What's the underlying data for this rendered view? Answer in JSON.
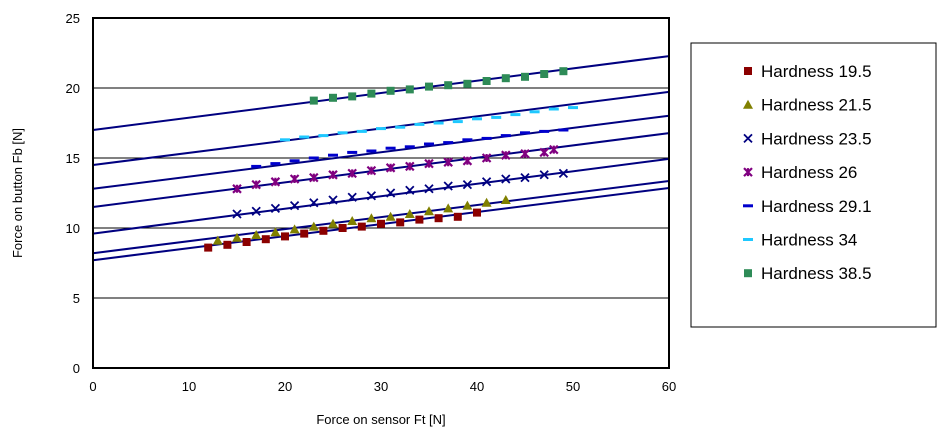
{
  "chart_data": {
    "type": "scatter",
    "xlabel": "Force on sensor Ft [N]",
    "ylabel": "Force on button Fb [N]",
    "xlim": [
      0,
      60
    ],
    "ylim": [
      0,
      25
    ],
    "xticks": [
      0,
      10,
      20,
      30,
      40,
      50,
      60
    ],
    "yticks": [
      0,
      5,
      10,
      15,
      20,
      25
    ],
    "grid": "horizontal",
    "legend_position": "right",
    "series": [
      {
        "name": "Hardness 19.5",
        "marker": "square",
        "color": "#8B0000",
        "x": [
          12,
          14,
          16,
          18,
          20,
          22,
          24,
          26,
          28,
          30,
          32,
          34,
          36,
          38,
          40
        ],
        "y": [
          8.6,
          8.8,
          9.0,
          9.2,
          9.4,
          9.6,
          9.8,
          10.0,
          10.1,
          10.3,
          10.4,
          10.6,
          10.7,
          10.8,
          11.1
        ]
      },
      {
        "name": "Hardness 21.5",
        "marker": "triangle",
        "color": "#808000",
        "x": [
          13,
          15,
          17,
          19,
          21,
          23,
          25,
          27,
          29,
          31,
          33,
          35,
          37,
          39,
          41,
          43
        ],
        "y": [
          9.1,
          9.3,
          9.5,
          9.7,
          9.9,
          10.1,
          10.3,
          10.5,
          10.7,
          10.8,
          11.0,
          11.2,
          11.4,
          11.6,
          11.8,
          12.0
        ]
      },
      {
        "name": "Hardness 23.5",
        "marker": "x",
        "color": "#000080",
        "x": [
          15,
          17,
          19,
          21,
          23,
          25,
          27,
          29,
          31,
          33,
          35,
          37,
          39,
          41,
          43,
          45,
          47,
          49
        ],
        "y": [
          11.0,
          11.2,
          11.4,
          11.6,
          11.8,
          12.0,
          12.2,
          12.3,
          12.5,
          12.7,
          12.8,
          13.0,
          13.1,
          13.3,
          13.5,
          13.6,
          13.8,
          13.9
        ]
      },
      {
        "name": "Hardness 26",
        "marker": "star",
        "color": "#800080",
        "x": [
          15,
          17,
          19,
          21,
          23,
          25,
          27,
          29,
          31,
          33,
          35,
          37,
          39,
          41,
          43,
          45,
          47,
          48
        ],
        "y": [
          12.8,
          13.1,
          13.3,
          13.5,
          13.6,
          13.8,
          13.9,
          14.1,
          14.3,
          14.4,
          14.6,
          14.7,
          14.8,
          15.0,
          15.2,
          15.3,
          15.4,
          15.6
        ]
      },
      {
        "name": "Hardness 29.1",
        "marker": "dash",
        "color": "#0000CC",
        "x": [
          17,
          19,
          21,
          23,
          25,
          27,
          29,
          31,
          33,
          35,
          37,
          39,
          41,
          43,
          45,
          47,
          49
        ],
        "y": [
          14.4,
          14.6,
          14.8,
          15.0,
          15.2,
          15.4,
          15.5,
          15.7,
          15.8,
          16.0,
          16.1,
          16.3,
          16.4,
          16.6,
          16.8,
          16.9,
          17.0
        ]
      },
      {
        "name": "Hardness 34",
        "marker": "dash",
        "color": "#1EC8FF",
        "x": [
          20,
          22,
          24,
          26,
          28,
          30,
          32,
          34,
          36,
          38,
          40,
          42,
          44,
          46,
          48,
          50
        ],
        "y": [
          16.3,
          16.5,
          16.6,
          16.8,
          16.9,
          17.1,
          17.2,
          17.4,
          17.5,
          17.6,
          17.8,
          17.9,
          18.1,
          18.3,
          18.5,
          18.6
        ]
      },
      {
        "name": "Hardness 38.5",
        "marker": "square",
        "color": "#2E8B57",
        "x": [
          23,
          25,
          27,
          29,
          31,
          33,
          35,
          37,
          39,
          41,
          43,
          45,
          47,
          49
        ],
        "y": [
          19.1,
          19.3,
          19.4,
          19.6,
          19.8,
          19.9,
          20.1,
          20.2,
          20.3,
          20.5,
          20.7,
          20.8,
          21.0,
          21.2
        ]
      }
    ],
    "fit_lines": {
      "color": "#000080",
      "lines": [
        {
          "intercept": 17.0,
          "slope": 0.088
        },
        {
          "intercept": 14.5,
          "slope": 0.087
        },
        {
          "intercept": 12.8,
          "slope": 0.087
        },
        {
          "intercept": 11.5,
          "slope": 0.088
        },
        {
          "intercept": 9.6,
          "slope": 0.089
        },
        {
          "intercept": 8.2,
          "slope": 0.086
        },
        {
          "intercept": 7.7,
          "slope": 0.086
        }
      ]
    }
  }
}
